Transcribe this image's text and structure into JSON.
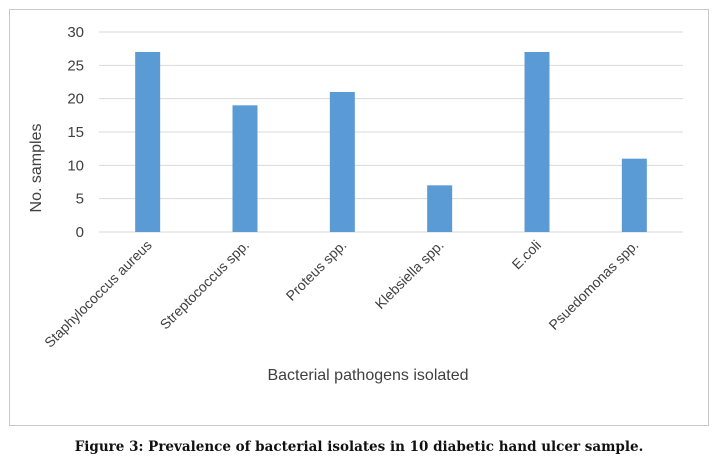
{
  "caption": "Figure 3: Prevalence of bacterial isolates in 10 diabetic hand ulcer sample.",
  "chart_data": {
    "type": "bar",
    "title": "",
    "xlabel": "Bacterial pathogens isolated",
    "ylabel": "No. samples",
    "categories": [
      "Staphylococcus aureus",
      "Streptococcus spp.",
      "Proteus spp.",
      "Klebsiella spp.",
      "E.coli",
      "Psuedomonas spp."
    ],
    "values": [
      27,
      19,
      21,
      7,
      27,
      11
    ],
    "ylim": [
      0,
      30
    ],
    "yticks": [
      0,
      5,
      10,
      15,
      20,
      25,
      30
    ],
    "grid": true,
    "bar_color": "#5b9bd5",
    "grid_color": "#d9d9d9"
  }
}
